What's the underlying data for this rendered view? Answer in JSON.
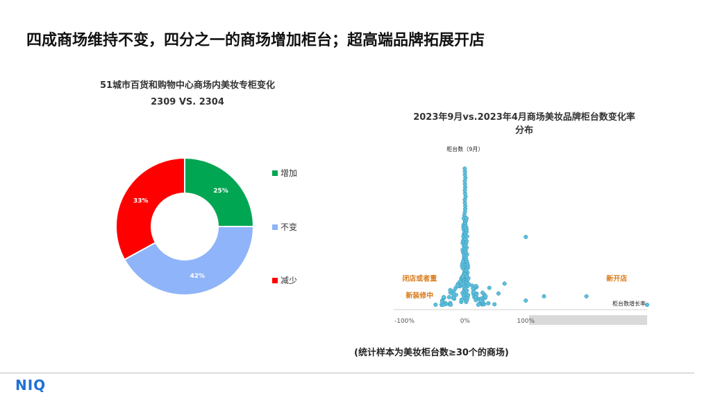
{
  "page": {
    "title": "四成商场维持不变，四分之一的商场增加柜台；超高端品牌拓展开店",
    "footnote": "(统计样本为美妆柜台数≥30个的商场)",
    "logo": "NIQ"
  },
  "chart_data": [
    {
      "type": "pie",
      "subtype": "donut",
      "title": "51城市百货和购物中心商场内美妆专柜变化",
      "subtitle": "2309 VS. 2304",
      "legend_position": "right",
      "slices": [
        {
          "name": "增加",
          "value": 25,
          "label": "25%",
          "color": "#00a651"
        },
        {
          "name": "不变",
          "value": 42,
          "label": "42%",
          "color": "#8fb4f9"
        },
        {
          "name": "减少",
          "value": 33,
          "label": "33%",
          "color": "#ff0000"
        }
      ]
    },
    {
      "type": "scatter",
      "title": "2023年9月vs.2023年4月商场美妆品牌柜台数变化率分布",
      "xlabel": "柜台数增长率",
      "ylabel": "柜台数（9月）",
      "x_ticks": [
        "-100%",
        "0%",
        "100%"
      ],
      "xlim": [
        -120,
        300
      ],
      "ylim": [
        0,
        100
      ],
      "point_color": "#5bc0de",
      "annotations": [
        {
          "text": "闭店或者重",
          "x": -75,
          "y": 17
        },
        {
          "text": "新装修中",
          "x": -75,
          "y": 5
        },
        {
          "text": "新开店",
          "x": 250,
          "y": 17
        }
      ],
      "distribution": {
        "center_column_x": 0,
        "center_column_max_y": 98,
        "core": {
          "x_spread": 5,
          "max_y": 62
        },
        "wings": {
          "left_x": -50,
          "right_x": 50,
          "max_y": 22
        }
      },
      "outliers": [
        {
          "x": 100,
          "y": 48
        },
        {
          "x": 100,
          "y": 3
        },
        {
          "x": 130,
          "y": 6
        },
        {
          "x": 200,
          "y": 6
        },
        {
          "x": 300,
          "y": 0
        },
        {
          "x": 40,
          "y": 12
        },
        {
          "x": 55,
          "y": 8
        },
        {
          "x": 65,
          "y": 15
        }
      ]
    }
  ]
}
